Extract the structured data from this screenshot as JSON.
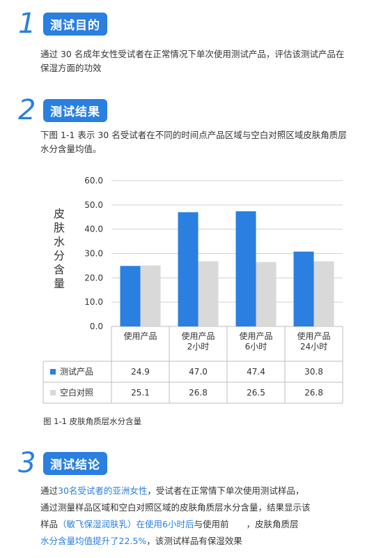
{
  "sections": [
    {
      "num": "1",
      "title": "测试目的"
    },
    {
      "num": "2",
      "title": "测试结果"
    },
    {
      "num": "3",
      "title": "测试结论"
    }
  ],
  "purpose_text": "通过 30 名成年女性受试者在正常情况下单次使用测试产品，评估该测试产品在保湿方面的功效",
  "result_text": "下图 1-1 表示 30 名受试者在不同的时间点产品区域与空白对照区域皮肤角质层水分含量均值。",
  "conclusion": {
    "l1_a": "通过",
    "l1_hl": "30名受试者的亚洲女性",
    "l1_b": "，受试者在正常情下单次使用测试样品，",
    "l2": "通过测量样品区域和空白对照区域的皮肤角质层水分含量，结果显示该",
    "l3_a": "样品",
    "l3_hl1": "（敏飞保湿润肤乳）在使用6小时后",
    "l3_b": "与使用前　　，皮肤角质层",
    "l4_hl": "水分含量均值提升了22.5%",
    "l4_b": "，该测试样品有保湿效果"
  },
  "caption": "图 1-1 皮肤角质层水分含量",
  "chart_data": {
    "type": "bar",
    "ylabel": "皮肤水分含量",
    "ylim": [
      0,
      60
    ],
    "yticks": [
      "0.0",
      "10.0",
      "20.0",
      "30.0",
      "40.0",
      "50.0",
      "60.0"
    ],
    "grid": true,
    "categories": [
      [
        "使用产品"
      ],
      [
        "使用产品",
        "2小时"
      ],
      [
        "使用产品",
        "6小时"
      ],
      [
        "使用产品",
        "24小时"
      ]
    ],
    "series": [
      {
        "name": "测试产品",
        "color": "#2a7fe0",
        "values": [
          24.9,
          47.0,
          47.4,
          30.8
        ],
        "labels": [
          "24.9",
          "47.0",
          "47.4",
          "30.8"
        ]
      },
      {
        "name": "空白对照",
        "color": "#d9d9d9",
        "values": [
          25.1,
          26.8,
          26.5,
          26.8
        ],
        "labels": [
          "25.1",
          "26.8",
          "26.5",
          "26.8"
        ]
      }
    ]
  }
}
